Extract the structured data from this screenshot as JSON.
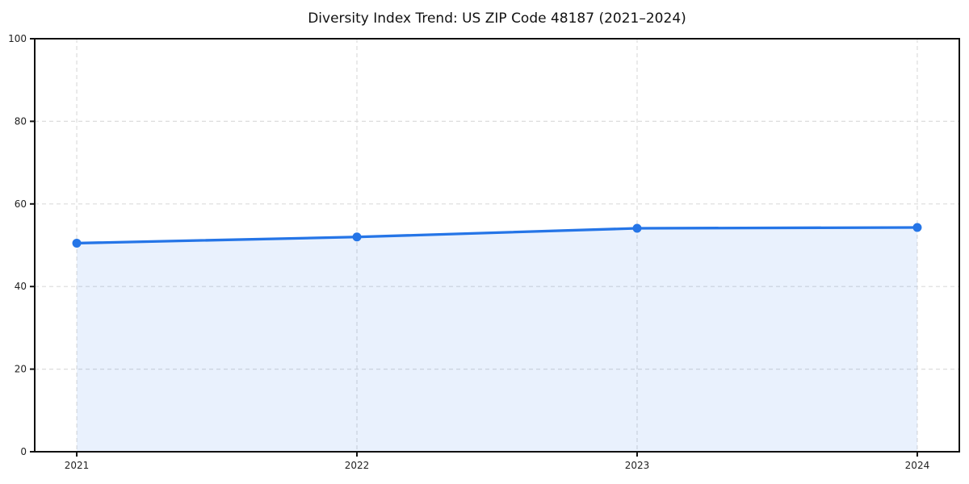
{
  "chart_data": {
    "type": "area",
    "title": "Diversity Index Trend: US ZIP Code 48187 (2021–2024)",
    "x": [
      "2021",
      "2022",
      "2023",
      "2024"
    ],
    "series": [
      {
        "name": "Diversity Index",
        "values": [
          50.5,
          52.0,
          54.1,
          54.3
        ]
      }
    ],
    "xlabel": "",
    "ylabel": "",
    "ylim": [
      0,
      100
    ],
    "yticks": [
      0,
      20,
      40,
      60,
      80,
      100
    ],
    "grid": "dashed",
    "legend_position": "none",
    "colors": {
      "line": "#2575e7",
      "marker": "#2575e7",
      "fill": "rgba(37,117,231,0.10)",
      "grid": "#dcdcdc",
      "axis": "#111111",
      "tick_label": "#222222",
      "title": "#111111",
      "background": "#ffffff"
    }
  }
}
